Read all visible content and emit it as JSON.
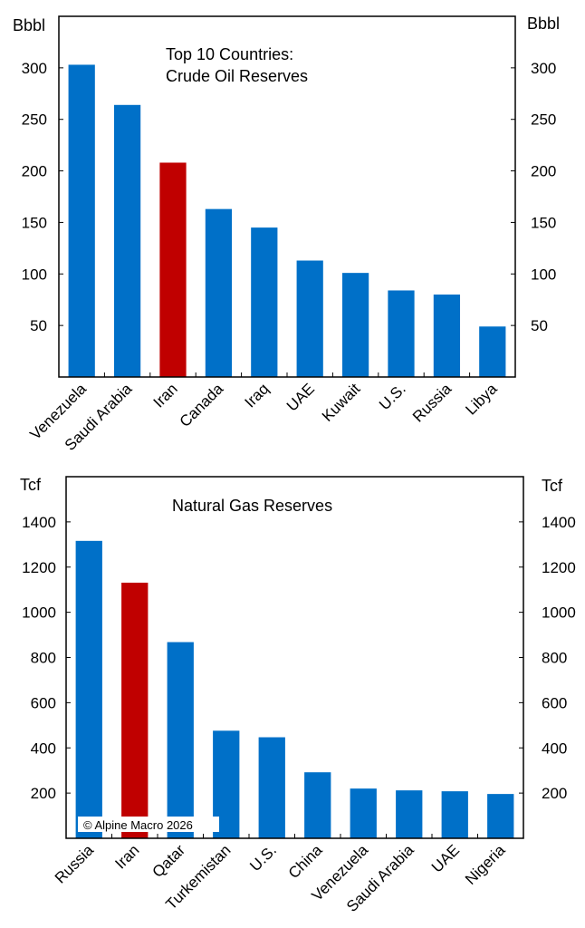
{
  "colors": {
    "bar": "#0070C8",
    "highlight": "#C00000"
  },
  "watermark": "© Alpine Macro 2026",
  "chart_data": [
    {
      "type": "bar",
      "title": "Top 10 Countries:",
      "subtitle": "Crude Oil Reserves",
      "ylabel_left": "Bbbl",
      "ylabel_right": "Bbbl",
      "ylim": [
        0,
        350
      ],
      "yticks": [
        50,
        100,
        150,
        200,
        250,
        300
      ],
      "categories": [
        "Venezuela",
        "Saudi Arabia",
        "Iran",
        "Canada",
        "Iraq",
        "UAE",
        "Kuwait",
        "U.S.",
        "Russia",
        "Libya"
      ],
      "values": [
        303,
        264,
        208,
        163,
        145,
        113,
        101,
        84,
        80,
        49
      ],
      "highlight": "Iran",
      "grid": false
    },
    {
      "type": "bar",
      "title": "Natural Gas Reserves",
      "ylabel_left": "Tcf",
      "ylabel_right": "Tcf",
      "ylim": [
        0,
        1600
      ],
      "yticks": [
        200,
        400,
        600,
        800,
        1000,
        1200,
        1400
      ],
      "categories": [
        "Russia",
        "Iran",
        "Qatar",
        "Turkemistan",
        "U.S.",
        "China",
        "Venezuela",
        "Saudi Arabia",
        "UAE",
        "Nigeria"
      ],
      "values": [
        1316,
        1131,
        868,
        476,
        447,
        292,
        220,
        212,
        208,
        196
      ],
      "highlight": "Iran",
      "grid": false
    }
  ]
}
